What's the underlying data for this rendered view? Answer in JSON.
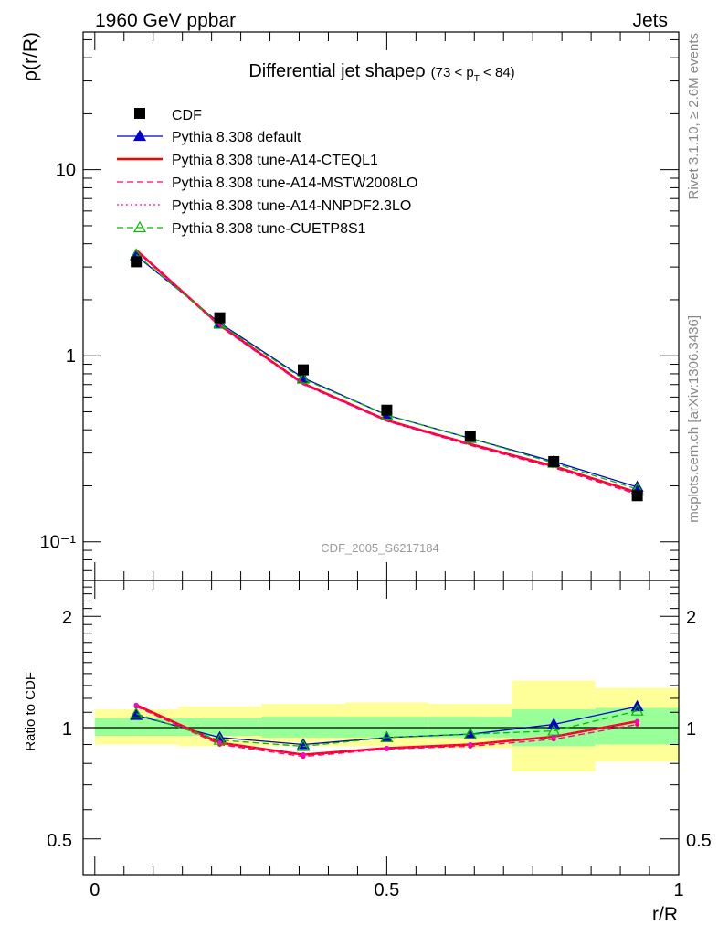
{
  "header": {
    "left": "1960 GeV ppbar",
    "right": "Jets"
  },
  "side_labels": {
    "rivet": "Rivet 3.1.10, ≥ 2.6M events",
    "source": "mcplots.cern.ch [arXiv:1306.3436]"
  },
  "chart_data": [
    {
      "type": "line",
      "title": "Differential jet shapeρ",
      "subtitle_parts": [
        "(73 < p",
        "T",
        " < 84)"
      ],
      "ylabel": "ρ(r/R)",
      "xlabel": "",
      "yscale": "log",
      "xlim": [
        -0.02,
        1.0
      ],
      "ylim": [
        0.062,
        55
      ],
      "y_tick_labels": [
        "10⁻¹",
        "1",
        "10"
      ],
      "watermark": "CDF_2005_S6217184",
      "legend_position": "top-left",
      "x": [
        0.071,
        0.214,
        0.357,
        0.5,
        0.643,
        0.786,
        0.929
      ],
      "data_label": "CDF",
      "data_values": [
        3.2,
        1.6,
        0.84,
        0.51,
        0.37,
        0.27,
        0.177
      ],
      "series": [
        {
          "name": "Pythia 8.308 default",
          "color": "#0000cc",
          "style": "solid",
          "marker": "filled-triangle",
          "values": [
            3.45,
            1.5,
            0.76,
            0.48,
            0.36,
            0.27,
            0.197
          ]
        },
        {
          "name": "Pythia 8.308 tune-A14-CTEQL1",
          "color": "#ff0000",
          "style": "solid-thick",
          "marker": "none",
          "values": [
            3.7,
            1.46,
            0.71,
            0.45,
            0.335,
            0.255,
            0.184
          ]
        },
        {
          "name": "Pythia 8.308 tune-A14-MSTW2008LO",
          "color": "#ff0077",
          "style": "dashed",
          "marker": "none",
          "values": [
            3.65,
            1.44,
            0.7,
            0.445,
            0.33,
            0.25,
            0.18
          ]
        },
        {
          "name": "Pythia 8.308 tune-A14-NNPDF2.3LO",
          "color": "#ff00cc",
          "style": "dotted",
          "marker": "none",
          "values": [
            3.7,
            1.46,
            0.71,
            0.45,
            0.335,
            0.255,
            0.184
          ]
        },
        {
          "name": "Pythia 8.308 tune-CUETP8S1",
          "color": "#00bb00",
          "style": "dashed",
          "marker": "open-triangle",
          "values": [
            3.5,
            1.48,
            0.75,
            0.48,
            0.36,
            0.265,
            0.192
          ]
        }
      ]
    },
    {
      "type": "line",
      "title": "",
      "ylabel": "Ratio to CDF",
      "xlabel": "r/R",
      "xlim": [
        -0.02,
        1.0
      ],
      "ylim": [
        0.4,
        2.5
      ],
      "yscale": "log",
      "y_ticks": [
        0.5,
        1,
        2
      ],
      "y_tick_labels": [
        "0.5",
        "1",
        "2"
      ],
      "x_ticks": [
        0,
        0.5,
        1
      ],
      "x_tick_labels": [
        "0",
        "0.5",
        "1"
      ],
      "uncertainty_bands": {
        "bin_edges": [
          0.0,
          0.143,
          0.286,
          0.429,
          0.571,
          0.714,
          0.857,
          1.0
        ],
        "stat_low": [
          0.95,
          0.95,
          0.94,
          0.94,
          0.94,
          0.89,
          0.9
        ],
        "stat_high": [
          1.06,
          1.06,
          1.07,
          1.07,
          1.07,
          1.12,
          1.13
        ],
        "total_low": [
          0.9,
          0.89,
          0.89,
          0.89,
          0.88,
          0.76,
          0.81
        ],
        "total_high": [
          1.12,
          1.14,
          1.16,
          1.17,
          1.16,
          1.34,
          1.28
        ],
        "stat_color": "#99ff99",
        "total_color": "#ffff99"
      },
      "series": [
        {
          "name": "Pythia 8.308 default",
          "color": "#0000cc",
          "style": "solid",
          "marker": "filled-triangle",
          "values": [
            1.08,
            0.94,
            0.9,
            0.94,
            0.96,
            1.02,
            1.14
          ]
        },
        {
          "name": "Pythia 8.308 tune-A14-CTEQL1",
          "color": "#ff0000",
          "style": "solid-thick",
          "marker": "none",
          "values": [
            1.15,
            0.91,
            0.845,
            0.88,
            0.9,
            0.945,
            1.04
          ]
        },
        {
          "name": "Pythia 8.308 tune-A14-MSTW2008LO",
          "color": "#ff0077",
          "style": "dashed",
          "marker": "none",
          "values": [
            1.14,
            0.9,
            0.835,
            0.875,
            0.89,
            0.93,
            1.02
          ]
        },
        {
          "name": "Pythia 8.308 tune-A14-NNPDF2.3LO",
          "color": "#ff00cc",
          "style": "dotted",
          "marker": "none",
          "values": [
            1.15,
            0.91,
            0.845,
            0.88,
            0.9,
            0.945,
            1.04
          ]
        },
        {
          "name": "Pythia 8.308 tune-CUETP8S1",
          "color": "#00bb00",
          "style": "dashed",
          "marker": "open-triangle",
          "values": [
            1.09,
            0.925,
            0.89,
            0.94,
            0.96,
            0.98,
            1.11
          ]
        }
      ]
    }
  ]
}
